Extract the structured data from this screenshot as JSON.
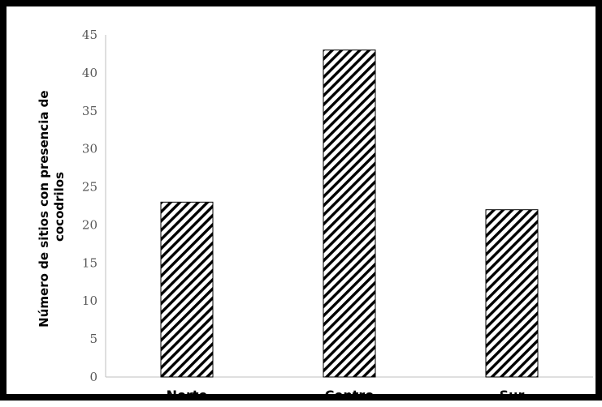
{
  "chart_data": {
    "type": "bar",
    "categories": [
      "Norte",
      "Centro",
      "Sur"
    ],
    "values": [
      23,
      43,
      22
    ],
    "ylabel_lines": [
      "Número de sitios con presencia de",
      "cocodrilos"
    ],
    "ylim": [
      0,
      45
    ],
    "yticks": [
      "0",
      "5",
      "10",
      "15",
      "20",
      "25",
      "30",
      "35",
      "40",
      "45"
    ],
    "grid": false,
    "legend": "none",
    "bar_fill": "diagonal-hatch",
    "colors": {
      "bar_stroke": "#000000",
      "axis": "#bfbfbf",
      "tick_text": "#595959"
    }
  }
}
